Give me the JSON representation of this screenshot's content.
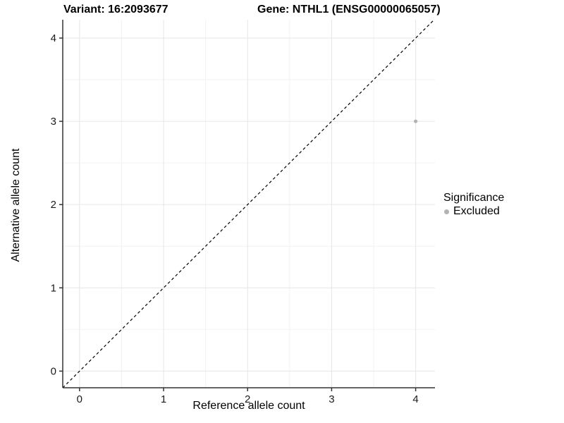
{
  "titles": {
    "left": "Variant: 16:2093677",
    "right": "Gene: NTHL1 (ENSG00000065057)"
  },
  "axes": {
    "x_label": "Reference allele count",
    "y_label": "Alternative allele count"
  },
  "legend": {
    "title": "Significance",
    "items": [
      {
        "label": "Excluded",
        "color": "#b3b3b3"
      }
    ]
  },
  "colors": {
    "grid_major": "#e6e6e6",
    "grid_minor": "#f2f2f2",
    "axis_line": "#333333",
    "tick_label": "#1a1a1a",
    "reference_line": "#000000",
    "point": "#b3b3b3"
  },
  "chart_data": {
    "type": "scatter",
    "title": "Variant: 16:2093677 | Gene: NTHL1 (ENSG00000065057)",
    "xlabel": "Reference allele count",
    "ylabel": "Alternative allele count",
    "xlim": [
      -0.2,
      4.23
    ],
    "ylim": [
      -0.2,
      4.22
    ],
    "xticks": [
      0,
      1,
      2,
      3,
      4
    ],
    "yticks": [
      0,
      1,
      2,
      3,
      4
    ],
    "grid": "major+minor",
    "legend_position": "right",
    "series": [
      {
        "name": "Excluded",
        "color": "#b3b3b3",
        "points": [
          {
            "x": 4,
            "y": 3
          }
        ]
      }
    ],
    "reference_line": {
      "slope": 1,
      "intercept": 0,
      "style": "dashed",
      "color": "#000000"
    }
  }
}
